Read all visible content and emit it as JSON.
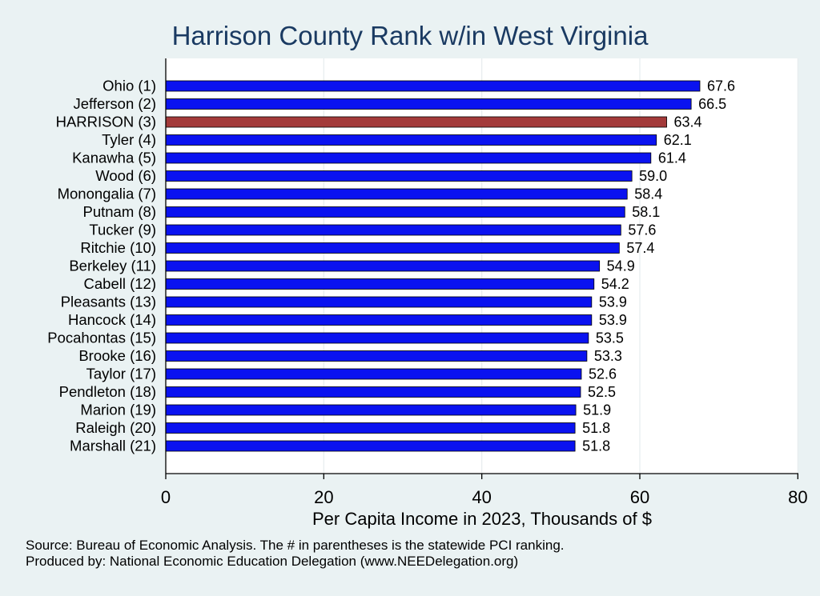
{
  "chart_data": {
    "type": "bar",
    "orientation": "horizontal",
    "title": "Harrison County Rank w/in West Virginia",
    "xlabel": "Per Capita Income in 2023, Thousands of $",
    "ylabel": "",
    "xlim": [
      0,
      80
    ],
    "x_ticks": [
      0,
      20,
      40,
      60,
      80
    ],
    "grid": true,
    "categories": [
      "Ohio  (1)",
      "Jefferson  (2)",
      "HARRISON  (3)",
      "Tyler  (4)",
      "Kanawha  (5)",
      "Wood  (6)",
      "Monongalia  (7)",
      "Putnam  (8)",
      "Tucker  (9)",
      "Ritchie (10)",
      "Berkeley (11)",
      "Cabell (12)",
      "Pleasants (13)",
      "Hancock (14)",
      "Pocahontas (15)",
      "Brooke (16)",
      "Taylor (17)",
      "Pendleton (18)",
      "Marion (19)",
      "Raleigh (20)",
      "Marshall (21)"
    ],
    "values": [
      67.6,
      66.5,
      63.4,
      62.1,
      61.4,
      59.0,
      58.4,
      58.1,
      57.6,
      57.4,
      54.9,
      54.2,
      53.9,
      53.9,
      53.5,
      53.3,
      52.6,
      52.5,
      51.9,
      51.8,
      51.8
    ],
    "value_labels": [
      "67.6",
      "66.5",
      "63.4",
      "62.1",
      "61.4",
      "59.0",
      "58.4",
      "58.1",
      "57.6",
      "57.4",
      "54.9",
      "54.2",
      "53.9",
      "53.9",
      "53.5",
      "53.3",
      "52.6",
      "52.5",
      "51.9",
      "51.8",
      "51.8"
    ],
    "highlight_index": 2,
    "colors": {
      "bar": "#0a12f0",
      "highlight": "#a33a3a",
      "title": "#1a3a62",
      "plot_bg": "#ffffff",
      "page_bg": "#eaf2f3",
      "grid": "#e6ecee"
    }
  },
  "footnotes": {
    "source": "Source: Bureau of Economic Analysis. The # in parentheses is the statewide PCI ranking.",
    "producer": "Produced by: National Economic Education Delegation (www.NEEDelegation.org)"
  }
}
